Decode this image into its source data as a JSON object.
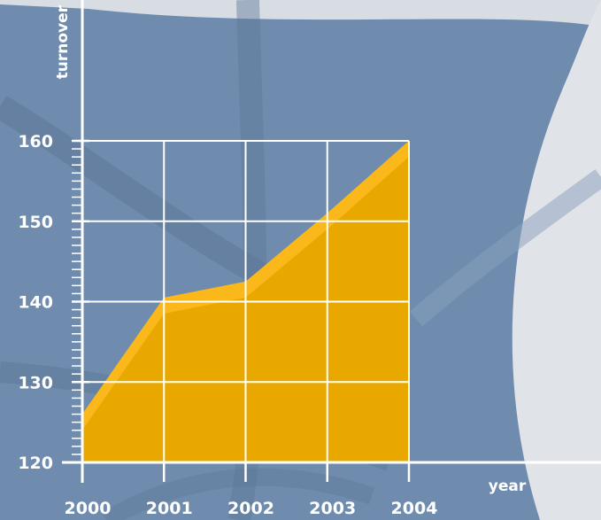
{
  "chart_data": {
    "type": "area",
    "x": [
      2000,
      2001,
      2002,
      2003,
      2004
    ],
    "values": [
      126,
      140.5,
      142.5,
      151,
      160
    ],
    "xlabel": "year",
    "ylabel": "turnover",
    "ylim": [
      120,
      160
    ],
    "xlim": [
      2000,
      2004
    ],
    "y_ticks": [
      "120",
      "130",
      "140",
      "150",
      "160"
    ],
    "x_ticks": [
      "2000",
      "2001",
      "2002",
      "2003",
      "2004"
    ],
    "grid": true,
    "colors": {
      "area": "#e9a800",
      "area_highlight": "#fbb81a",
      "grid": "#ffffff",
      "axis": "#ffffff",
      "background": "#6f8cae"
    }
  }
}
